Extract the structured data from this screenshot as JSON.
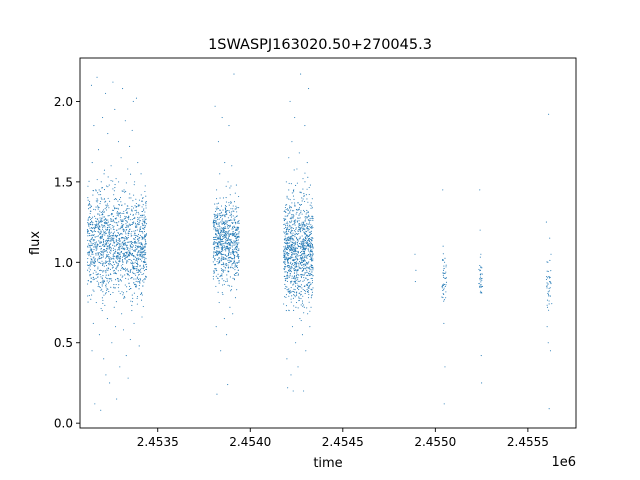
{
  "chart_data": {
    "type": "scatter",
    "title": "1SWASPJ163020.50+270045.3",
    "xlabel": "time",
    "ylabel": "flux",
    "x_offset_label": "1e6",
    "xlim": [
      2453080,
      2455760
    ],
    "ylim": [
      -0.03,
      2.27
    ],
    "x_ticks": [
      {
        "value": 2453500,
        "label": "2.4535"
      },
      {
        "value": 2454000,
        "label": "2.4540"
      },
      {
        "value": 2454500,
        "label": "2.4545"
      },
      {
        "value": 2455000,
        "label": "2.4550"
      },
      {
        "value": 2455500,
        "label": "2.4555"
      }
    ],
    "y_ticks": [
      {
        "value": 0.0,
        "label": "0.0"
      },
      {
        "value": 0.5,
        "label": "0.5"
      },
      {
        "value": 1.0,
        "label": "1.0"
      },
      {
        "value": 1.5,
        "label": "1.5"
      },
      {
        "value": 2.0,
        "label": "2.0"
      }
    ],
    "grid": false,
    "marker_color": "#1f77b4",
    "series": [
      {
        "points": [
          [
            2453140,
            1.12
          ],
          [
            2453140,
            1.35
          ],
          [
            2453141,
            0.9
          ],
          [
            2453142,
            2.1
          ],
          [
            2453145,
            0.45
          ],
          [
            2453146,
            1.62
          ],
          [
            2453150,
            1.05
          ],
          [
            2453152,
            0.62
          ],
          [
            2453155,
            1.85
          ],
          [
            2453158,
            1.2
          ],
          [
            2453160,
            0.12
          ],
          [
            2453162,
            0.98
          ],
          [
            2453165,
            1.45
          ],
          [
            2453168,
            0.75
          ],
          [
            2453170,
            1.1
          ],
          [
            2453172,
            2.15
          ],
          [
            2453175,
            1.3
          ],
          [
            2453178,
            0.85
          ],
          [
            2453180,
            1.7
          ],
          [
            2453182,
            1.0
          ],
          [
            2453185,
            0.55
          ],
          [
            2453188,
            1.25
          ],
          [
            2453190,
            0.95
          ],
          [
            2453192,
            0.08
          ],
          [
            2453195,
            1.4
          ],
          [
            2453198,
            1.15
          ],
          [
            2453200,
            0.7
          ],
          [
            2453202,
            1.9
          ],
          [
            2453205,
            1.05
          ],
          [
            2453208,
            0.4
          ],
          [
            2453210,
            1.55
          ],
          [
            2453212,
            0.88
          ],
          [
            2453215,
            1.22
          ],
          [
            2453218,
            2.05
          ],
          [
            2453220,
            0.3
          ],
          [
            2453222,
            1.0
          ],
          [
            2453225,
            1.35
          ],
          [
            2453228,
            0.65
          ],
          [
            2453230,
            1.8
          ],
          [
            2453232,
            1.1
          ],
          [
            2453235,
            0.92
          ],
          [
            2453238,
            1.48
          ],
          [
            2453240,
            0.25
          ],
          [
            2453242,
            1.18
          ],
          [
            2453245,
            0.8
          ],
          [
            2453248,
            1.6
          ],
          [
            2453250,
            1.02
          ],
          [
            2453252,
            0.5
          ],
          [
            2453255,
            1.3
          ],
          [
            2453258,
            2.12
          ],
          [
            2453260,
            0.97
          ],
          [
            2453262,
            1.42
          ],
          [
            2453265,
            0.72
          ],
          [
            2453268,
            1.95
          ],
          [
            2453270,
            1.08
          ],
          [
            2453272,
            0.6
          ],
          [
            2453275,
            1.52
          ],
          [
            2453278,
            0.15
          ],
          [
            2453280,
            1.2
          ],
          [
            2453282,
            0.9
          ],
          [
            2453285,
            1.38
          ],
          [
            2453288,
            1.75
          ],
          [
            2453290,
            0.82
          ],
          [
            2453292,
            1.05
          ],
          [
            2453295,
            0.35
          ],
          [
            2453298,
            1.28
          ],
          [
            2453300,
            0.95
          ],
          [
            2453302,
            1.65
          ],
          [
            2453305,
            0.68
          ],
          [
            2453308,
            1.12
          ],
          [
            2453310,
            2.08
          ],
          [
            2453312,
            1.0
          ],
          [
            2453315,
            0.58
          ],
          [
            2453318,
            1.45
          ],
          [
            2453320,
            1.15
          ],
          [
            2453322,
            0.78
          ],
          [
            2453325,
            1.88
          ],
          [
            2453328,
            1.03
          ],
          [
            2453330,
            0.42
          ],
          [
            2453332,
            1.33
          ],
          [
            2453335,
            0.93
          ],
          [
            2453338,
            1.58
          ],
          [
            2453340,
            0.28
          ],
          [
            2453342,
            1.22
          ],
          [
            2453345,
            0.87
          ],
          [
            2453348,
            1.72
          ],
          [
            2453350,
            1.06
          ],
          [
            2453352,
            0.52
          ],
          [
            2453355,
            1.4
          ],
          [
            2453358,
            1.13
          ],
          [
            2453360,
            0.7
          ],
          [
            2453362,
            1.82
          ],
          [
            2453365,
            0.98
          ],
          [
            2453368,
            2.0
          ],
          [
            2453370,
            1.25
          ],
          [
            2453372,
            0.62
          ],
          [
            2453375,
            1.5
          ],
          [
            2453378,
            1.0
          ],
          [
            2453380,
            0.85
          ],
          [
            2453382,
            1.3
          ],
          [
            2453385,
            2.02
          ],
          [
            2453388,
            1.1
          ],
          [
            2453390,
            0.74
          ],
          [
            2453392,
            1.62
          ],
          [
            2453395,
            0.95
          ],
          [
            2453398,
            1.35
          ],
          [
            2453400,
            0.48
          ],
          [
            2453402,
            1.2
          ],
          [
            2453405,
            1.04
          ],
          [
            2453408,
            0.8
          ],
          [
            2453410,
            1.55
          ],
          [
            2453412,
            1.12
          ],
          [
            2453415,
            0.66
          ],
          [
            2453418,
            1.38
          ],
          [
            2453810,
            1.97
          ],
          [
            2453812,
            1.2
          ],
          [
            2453814,
            0.85
          ],
          [
            2453815,
            1.1
          ],
          [
            2453816,
            0.6
          ],
          [
            2453818,
            1.45
          ],
          [
            2453820,
            0.18
          ],
          [
            2453822,
            1.05
          ],
          [
            2453824,
            1.3
          ],
          [
            2453826,
            0.9
          ],
          [
            2453828,
            1.75
          ],
          [
            2453830,
            1.0
          ],
          [
            2453832,
            0.75
          ],
          [
            2453835,
            1.55
          ],
          [
            2453838,
            1.15
          ],
          [
            2453840,
            0.45
          ],
          [
            2453842,
            1.25
          ],
          [
            2453845,
            0.95
          ],
          [
            2453848,
            1.9
          ],
          [
            2453850,
            1.08
          ],
          [
            2453852,
            0.8
          ],
          [
            2453855,
            1.4
          ],
          [
            2453858,
            1.02
          ],
          [
            2453860,
            0.65
          ],
          [
            2453862,
            1.62
          ],
          [
            2453865,
            1.18
          ],
          [
            2453868,
            0.88
          ],
          [
            2453870,
            1.32
          ],
          [
            2453872,
            0.55
          ],
          [
            2453875,
            1.1
          ],
          [
            2453878,
            0.24
          ],
          [
            2453880,
            1.5
          ],
          [
            2453882,
            0.97
          ],
          [
            2453885,
            1.85
          ],
          [
            2453888,
            1.22
          ],
          [
            2453890,
            0.72
          ],
          [
            2453892,
            1.42
          ],
          [
            2453895,
            1.05
          ],
          [
            2453898,
            0.83
          ],
          [
            2453900,
            1.6
          ],
          [
            2453902,
            1.12
          ],
          [
            2453905,
            0.68
          ],
          [
            2453908,
            1.35
          ],
          [
            2453910,
            1.0
          ],
          [
            2453912,
            2.17
          ],
          [
            2453915,
            0.92
          ],
          [
            2453918,
            1.28
          ],
          [
            2453920,
            0.78
          ],
          [
            2453922,
            1.15
          ],
          [
            2453925,
            1.48
          ],
          [
            2453928,
            0.98
          ],
          [
            2453930,
            1.2
          ],
          [
            2454190,
            1.1
          ],
          [
            2454192,
            0.85
          ],
          [
            2454195,
            1.5
          ],
          [
            2454198,
            0.4
          ],
          [
            2454200,
            1.25
          ],
          [
            2454202,
            0.22
          ],
          [
            2454205,
            1.0
          ],
          [
            2454208,
            1.65
          ],
          [
            2454210,
            0.7
          ],
          [
            2454212,
            1.35
          ],
          [
            2454215,
            2.0
          ],
          [
            2454218,
            0.95
          ],
          [
            2454220,
            0.3
          ],
          [
            2454222,
            1.2
          ],
          [
            2454225,
            1.75
          ],
          [
            2454228,
            0.6
          ],
          [
            2454230,
            1.05
          ],
          [
            2454232,
            0.2
          ],
          [
            2454235,
            1.45
          ],
          [
            2454238,
            0.88
          ],
          [
            2454240,
            1.9
          ],
          [
            2454242,
            1.12
          ],
          [
            2454245,
            0.5
          ],
          [
            2454248,
            1.3
          ],
          [
            2454250,
            0.75
          ],
          [
            2454252,
            1.58
          ],
          [
            2454255,
            1.02
          ],
          [
            2454258,
            0.35
          ],
          [
            2454260,
            1.22
          ],
          [
            2454262,
            0.92
          ],
          [
            2454265,
            1.68
          ],
          [
            2454268,
            0.65
          ],
          [
            2454270,
            1.15
          ],
          [
            2454272,
            2.17
          ],
          [
            2454275,
            0.8
          ],
          [
            2454278,
            1.4
          ],
          [
            2454280,
            1.0
          ],
          [
            2454282,
            0.55
          ],
          [
            2454285,
            1.52
          ],
          [
            2454288,
            0.2
          ],
          [
            2454290,
            1.08
          ],
          [
            2454292,
            0.72
          ],
          [
            2454295,
            1.85
          ],
          [
            2454298,
            1.18
          ],
          [
            2454300,
            0.45
          ],
          [
            2454302,
            1.3
          ],
          [
            2454305,
            0.95
          ],
          [
            2454308,
            1.62
          ],
          [
            2454310,
            0.68
          ],
          [
            2454312,
            1.1
          ],
          [
            2454315,
            2.08
          ],
          [
            2454318,
            0.85
          ],
          [
            2454320,
            1.25
          ],
          [
            2454322,
            0.6
          ],
          [
            2454325,
            1.48
          ],
          [
            2454328,
            1.02
          ],
          [
            2454330,
            0.78
          ],
          [
            2454332,
            1.35
          ],
          [
            2454335,
            0.9
          ],
          [
            2454890,
            1.05
          ],
          [
            2454892,
            0.88
          ],
          [
            2454895,
            0.95
          ],
          [
            2455040,
            1.45
          ],
          [
            2455042,
            1.1
          ],
          [
            2455044,
            0.95
          ],
          [
            2455045,
            0.8
          ],
          [
            2455046,
            0.62
          ],
          [
            2455048,
            0.12
          ],
          [
            2455050,
            1.0
          ],
          [
            2455052,
            0.35
          ],
          [
            2455055,
            0.9
          ],
          [
            2455240,
            1.45
          ],
          [
            2455242,
            1.2
          ],
          [
            2455244,
            0.95
          ],
          [
            2455245,
            0.82
          ],
          [
            2455246,
            1.05
          ],
          [
            2455248,
            0.42
          ],
          [
            2455250,
            0.25
          ],
          [
            2455252,
            0.9
          ],
          [
            2455600,
            1.25
          ],
          [
            2455602,
            0.85
          ],
          [
            2455604,
            0.6
          ],
          [
            2455606,
            0.72
          ],
          [
            2455608,
            1.0
          ],
          [
            2455610,
            0.5
          ],
          [
            2455612,
            1.92
          ],
          [
            2455615,
            0.09
          ],
          [
            2455618,
            1.15
          ],
          [
            2455620,
            0.88
          ],
          [
            2455622,
            0.45
          ],
          [
            2455625,
            1.05
          ]
        ]
      },
      {
        "bands": [
          {
            "x0": 2453120,
            "x1": 2453440,
            "y_center": 1.12,
            "y_spread": 0.28,
            "count": 1400
          },
          {
            "x0": 2453800,
            "x1": 2453940,
            "y_center": 1.13,
            "y_spread": 0.22,
            "count": 700
          },
          {
            "x0": 2454180,
            "x1": 2454340,
            "y_center": 1.08,
            "y_spread": 0.3,
            "count": 1000
          },
          {
            "x0": 2455035,
            "x1": 2455060,
            "y_center": 0.9,
            "y_spread": 0.12,
            "count": 40
          },
          {
            "x0": 2455235,
            "x1": 2455255,
            "y_center": 0.9,
            "y_spread": 0.12,
            "count": 30
          },
          {
            "x0": 2455600,
            "x1": 2455630,
            "y_center": 0.85,
            "y_spread": 0.14,
            "count": 35
          }
        ]
      }
    ]
  }
}
